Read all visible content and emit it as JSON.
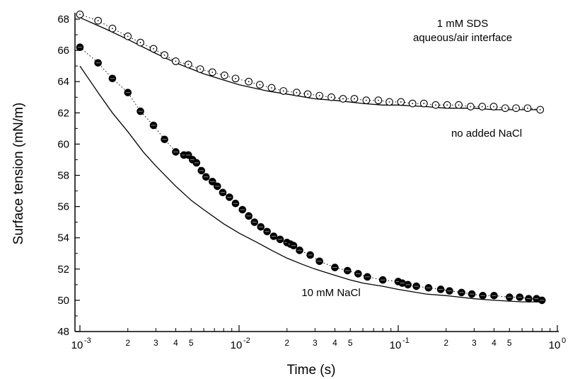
{
  "chart_data": {
    "type": "scatter",
    "xlabel": "Time (s)",
    "ylabel": "Surface tension (mN/m)",
    "x_scale": "log",
    "xlim": [
      0.001,
      1.0
    ],
    "ylim": [
      48,
      69
    ],
    "y_ticks": [
      48,
      50,
      52,
      54,
      56,
      58,
      60,
      62,
      64,
      66,
      68
    ],
    "x_major_ticks": [
      {
        "value": 0.001,
        "base": "10",
        "exp": "-3"
      },
      {
        "value": 0.01,
        "base": "10",
        "exp": "-2"
      },
      {
        "value": 0.1,
        "base": "10",
        "exp": "-1"
      },
      {
        "value": 1.0,
        "base": "10",
        "exp": "0"
      }
    ],
    "x_minor_labels": [
      "2",
      "3",
      "4",
      "5"
    ],
    "annotations": [
      {
        "text": "1 mM SDS",
        "anchor": "top-right"
      },
      {
        "text": "aqueous/air interface",
        "anchor": "top-right"
      },
      {
        "text": "no added NaCl",
        "anchor": "right"
      },
      {
        "text": "10 mM NaCl",
        "anchor": "bottom-center"
      }
    ],
    "series": [
      {
        "marker": "open-circle",
        "color": "#000000",
        "x": [
          0.001,
          0.0013,
          0.0016,
          0.002,
          0.0024,
          0.0029,
          0.0034,
          0.004,
          0.0048,
          0.0057,
          0.0068,
          0.0081,
          0.0095,
          0.0115,
          0.0135,
          0.016,
          0.019,
          0.023,
          0.027,
          0.032,
          0.038,
          0.045,
          0.053,
          0.063,
          0.075,
          0.088,
          0.104,
          0.123,
          0.145,
          0.172,
          0.203,
          0.24,
          0.285,
          0.337,
          0.398,
          0.47,
          0.55,
          0.65,
          0.78
        ],
        "y": [
          68.3,
          67.9,
          67.4,
          66.9,
          66.5,
          66.1,
          65.7,
          65.3,
          65.1,
          64.8,
          64.6,
          64.4,
          64.2,
          64.0,
          63.8,
          63.6,
          63.4,
          63.3,
          63.2,
          63.1,
          63.0,
          62.9,
          62.9,
          62.8,
          62.8,
          62.7,
          62.7,
          62.6,
          62.6,
          62.5,
          62.5,
          62.5,
          62.4,
          62.4,
          62.4,
          62.3,
          62.3,
          62.3,
          62.2
        ]
      },
      {
        "marker": "filled-circle",
        "color": "#000000",
        "x": [
          0.001,
          0.0013,
          0.0016,
          0.002,
          0.0024,
          0.0029,
          0.0034,
          0.004,
          0.0045,
          0.0048,
          0.0051,
          0.0054,
          0.0058,
          0.0062,
          0.0068,
          0.0073,
          0.0079,
          0.0087,
          0.0095,
          0.0105,
          0.0115,
          0.0125,
          0.0137,
          0.015,
          0.0165,
          0.0181,
          0.02,
          0.021,
          0.022,
          0.024,
          0.028,
          0.032,
          0.04,
          0.048,
          0.056,
          0.064,
          0.08,
          0.1,
          0.106,
          0.115,
          0.13,
          0.155,
          0.185,
          0.21,
          0.25,
          0.29,
          0.34,
          0.4,
          0.5,
          0.58,
          0.66,
          0.74,
          0.8
        ],
        "y": [
          66.2,
          65.2,
          64.2,
          63.3,
          62.1,
          61.2,
          60.3,
          59.5,
          59.3,
          59.3,
          59.0,
          58.8,
          58.3,
          57.9,
          57.6,
          57.3,
          56.9,
          56.6,
          56.2,
          55.8,
          55.4,
          55.0,
          54.7,
          54.4,
          54.1,
          53.9,
          53.7,
          53.6,
          53.5,
          53.2,
          52.9,
          52.5,
          52.1,
          51.9,
          51.7,
          51.5,
          51.3,
          51.2,
          51.1,
          51.0,
          50.9,
          50.8,
          50.7,
          50.6,
          50.5,
          50.4,
          50.3,
          50.3,
          50.2,
          50.2,
          50.1,
          50.1,
          50.0
        ]
      },
      {
        "line": "solid",
        "color": "#000000",
        "x": [
          0.001,
          0.0015,
          0.002,
          0.003,
          0.004,
          0.006,
          0.008,
          0.01,
          0.015,
          0.02,
          0.03,
          0.04,
          0.06,
          0.08,
          0.1,
          0.15,
          0.2,
          0.3,
          0.4,
          0.6,
          0.8
        ],
        "y": [
          68.1,
          67.3,
          66.7,
          65.8,
          65.2,
          64.5,
          64.1,
          63.8,
          63.4,
          63.2,
          62.9,
          62.8,
          62.6,
          62.5,
          62.5,
          62.4,
          62.3,
          62.3,
          62.2,
          62.2,
          62.2
        ]
      },
      {
        "line": "solid",
        "color": "#000000",
        "x": [
          0.001,
          0.0013,
          0.0016,
          0.002,
          0.0025,
          0.003,
          0.004,
          0.005,
          0.006,
          0.008,
          0.01,
          0.013,
          0.016,
          0.02,
          0.025,
          0.03,
          0.04,
          0.05,
          0.06,
          0.08,
          0.1,
          0.15,
          0.2,
          0.3,
          0.4,
          0.6,
          0.8
        ],
        "y": [
          65.0,
          63.3,
          62.0,
          60.8,
          59.5,
          58.6,
          57.3,
          56.4,
          55.8,
          54.9,
          54.3,
          53.7,
          53.2,
          52.7,
          52.3,
          52.0,
          51.6,
          51.3,
          51.1,
          50.9,
          50.7,
          50.4,
          50.3,
          50.1,
          50.0,
          49.9,
          49.9
        ]
      }
    ]
  }
}
